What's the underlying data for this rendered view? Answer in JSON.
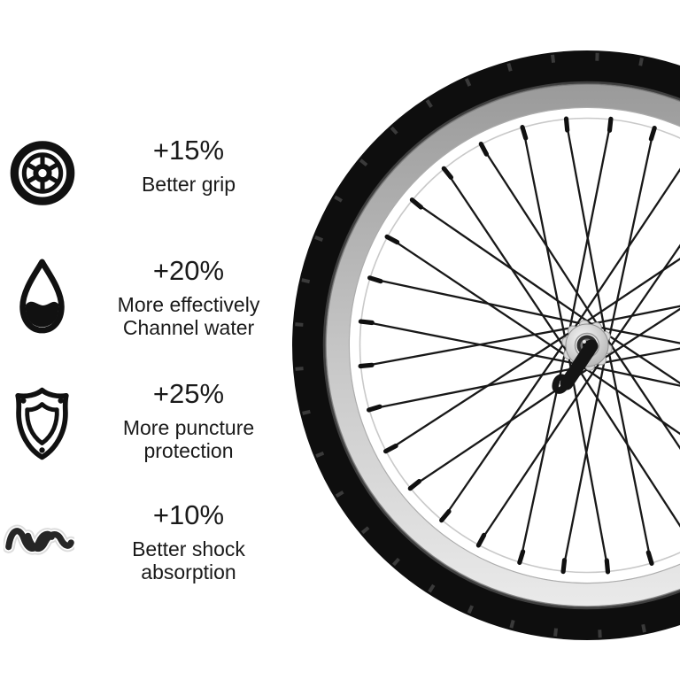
{
  "page": {
    "background": "#ffffff",
    "text_color": "#1a1a1a"
  },
  "features": [
    {
      "id": "better-grip",
      "icon": "tire-icon",
      "percent": "+15%",
      "desc": "Better grip"
    },
    {
      "id": "channel-water",
      "icon": "water-drop-icon",
      "percent": "+20%",
      "desc": "More effectively\nChannel water"
    },
    {
      "id": "puncture-protection",
      "icon": "shield-icon",
      "percent": "+25%",
      "desc": "More puncture\nprotection"
    },
    {
      "id": "shock-absorption",
      "icon": "shock-wave-icon",
      "percent": "+10%",
      "desc": "Better shock\nabsorption"
    }
  ],
  "icon_color": "#111111",
  "wheel": {
    "name": "bicycle-front-wheel",
    "spoke_count": 32,
    "colors": {
      "tire": "#0e0e0e",
      "tread_mark": "#3a3a3a",
      "sidewall_line": "#3f3f3f",
      "rim_top": "#989898",
      "rim_mid": "#c9c9c9",
      "rim_bottom": "#ececec",
      "rim_edge": "#7a7a7a",
      "rim_inner_edge": "#adadad",
      "inner_lip_line": "#c9c9c9",
      "spoke": "#181818",
      "nipple": "#101010",
      "hub_light": "#f7f7f7",
      "hub_dark": "#a8a8a8",
      "hub_stroke": "#8f8f8f",
      "bearing_ring": "#2c2c2c",
      "axle": "#0c0c0c",
      "lever": "#141414"
    }
  }
}
